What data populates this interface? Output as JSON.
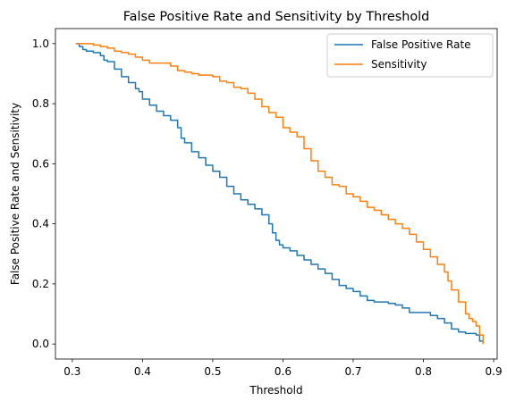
{
  "chart_data": {
    "type": "line",
    "title": "False Positive Rate and Sensitivity by Threshold",
    "xlabel": "Threshold",
    "ylabel": "False Positive Rate and Sensitivity",
    "xlim": [
      0.276,
      0.905
    ],
    "ylim": [
      -0.05,
      1.05
    ],
    "xticks": [
      "0.3",
      "0.4",
      "0.5",
      "0.6",
      "0.7",
      "0.8",
      "0.9"
    ],
    "yticks": [
      "0.0",
      "0.2",
      "0.4",
      "0.6",
      "0.8",
      "1.0"
    ],
    "xtick_values": [
      0.3,
      0.4,
      0.5,
      0.6,
      0.7,
      0.8,
      0.9
    ],
    "ytick_values": [
      0.0,
      0.2,
      0.4,
      0.6,
      0.8,
      1.0
    ],
    "grid": false,
    "legend_position": "top-right",
    "series": [
      {
        "name": "False Positive Rate",
        "color": "#1f77b4",
        "x": [
          0.305,
          0.31,
          0.315,
          0.32,
          0.33,
          0.34,
          0.345,
          0.35,
          0.36,
          0.37,
          0.38,
          0.39,
          0.395,
          0.4,
          0.41,
          0.42,
          0.43,
          0.44,
          0.45,
          0.455,
          0.46,
          0.47,
          0.48,
          0.49,
          0.5,
          0.51,
          0.52,
          0.53,
          0.54,
          0.55,
          0.56,
          0.57,
          0.58,
          0.585,
          0.59,
          0.595,
          0.6,
          0.61,
          0.62,
          0.63,
          0.64,
          0.65,
          0.66,
          0.67,
          0.68,
          0.69,
          0.7,
          0.71,
          0.72,
          0.73,
          0.74,
          0.75,
          0.76,
          0.77,
          0.78,
          0.79,
          0.8,
          0.81,
          0.82,
          0.83,
          0.84,
          0.85,
          0.86,
          0.87,
          0.875,
          0.88,
          0.885
        ],
        "y": [
          1.0,
          0.99,
          0.98,
          0.975,
          0.97,
          0.96,
          0.945,
          0.94,
          0.915,
          0.89,
          0.87,
          0.85,
          0.84,
          0.815,
          0.795,
          0.775,
          0.76,
          0.745,
          0.72,
          0.685,
          0.67,
          0.64,
          0.62,
          0.595,
          0.575,
          0.555,
          0.525,
          0.5,
          0.48,
          0.465,
          0.45,
          0.43,
          0.4,
          0.37,
          0.345,
          0.33,
          0.32,
          0.31,
          0.295,
          0.28,
          0.265,
          0.25,
          0.235,
          0.215,
          0.195,
          0.185,
          0.175,
          0.16,
          0.145,
          0.14,
          0.14,
          0.135,
          0.13,
          0.12,
          0.105,
          0.105,
          0.105,
          0.095,
          0.085,
          0.07,
          0.05,
          0.04,
          0.035,
          0.035,
          0.03,
          0.01,
          0.0
        ]
      },
      {
        "name": "Sensitivity",
        "color": "#ff7f0e",
        "x": [
          0.305,
          0.32,
          0.33,
          0.34,
          0.35,
          0.36,
          0.37,
          0.38,
          0.39,
          0.4,
          0.41,
          0.42,
          0.43,
          0.44,
          0.45,
          0.46,
          0.47,
          0.48,
          0.49,
          0.5,
          0.51,
          0.52,
          0.53,
          0.54,
          0.55,
          0.56,
          0.57,
          0.58,
          0.59,
          0.6,
          0.61,
          0.62,
          0.63,
          0.64,
          0.65,
          0.66,
          0.67,
          0.68,
          0.69,
          0.7,
          0.71,
          0.72,
          0.73,
          0.74,
          0.75,
          0.76,
          0.77,
          0.78,
          0.79,
          0.8,
          0.81,
          0.82,
          0.83,
          0.835,
          0.84,
          0.85,
          0.86,
          0.865,
          0.87,
          0.875,
          0.88,
          0.885
        ],
        "y": [
          1.0,
          1.0,
          0.995,
          0.99,
          0.985,
          0.975,
          0.97,
          0.965,
          0.955,
          0.945,
          0.935,
          0.935,
          0.935,
          0.925,
          0.91,
          0.905,
          0.9,
          0.895,
          0.895,
          0.89,
          0.875,
          0.87,
          0.855,
          0.85,
          0.835,
          0.815,
          0.79,
          0.77,
          0.755,
          0.72,
          0.705,
          0.69,
          0.65,
          0.61,
          0.575,
          0.555,
          0.53,
          0.525,
          0.5,
          0.49,
          0.475,
          0.455,
          0.445,
          0.43,
          0.415,
          0.4,
          0.385,
          0.365,
          0.34,
          0.315,
          0.29,
          0.265,
          0.24,
          0.21,
          0.18,
          0.14,
          0.1,
          0.085,
          0.075,
          0.06,
          0.03,
          0.0
        ]
      }
    ]
  }
}
